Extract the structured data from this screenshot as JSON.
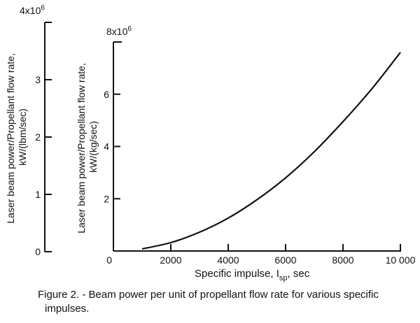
{
  "chart_data": [
    {
      "type": "axis",
      "ylabel_lines": [
        "Laser beam power/Propellant flow rate,",
        "kW/(lbm/sec)"
      ],
      "ylim": [
        0,
        4000000
      ],
      "y_ticks": [
        0,
        1,
        2,
        3
      ],
      "y_ticks_labels": [
        "0",
        "1",
        "2",
        "3"
      ],
      "y_top_label": "4x10",
      "y_top_exponent": "6"
    },
    {
      "type": "line",
      "ylabel_lines": [
        "Laser beam power/Propellant flow rate,",
        "kW/(kg/sec)"
      ],
      "xlabel_main": "Specific impulse,  I",
      "xlabel_sub": "sp",
      "xlabel_unit": ",  sec",
      "xlim": [
        0,
        10000
      ],
      "ylim": [
        0,
        8000000
      ],
      "x_ticks": [
        0,
        2000,
        4000,
        6000,
        8000,
        10000
      ],
      "x_tick_labels": [
        "0",
        "2000",
        "4000",
        "6000",
        "8000",
        "10 000"
      ],
      "y_ticks": [
        0,
        2,
        4,
        6
      ],
      "y_tick_labels": [
        "",
        "2",
        "4",
        "6"
      ],
      "y_top_label": "8x10",
      "y_top_exponent": "6",
      "series": [
        {
          "x": [
            1000,
            2000,
            3000,
            4000,
            5000,
            6000,
            7000,
            8000,
            9000,
            10000
          ],
          "y": [
            80000,
            320000,
            720000,
            1260000,
            1960000,
            2800000,
            3800000,
            4950000,
            6200000,
            7600000
          ]
        }
      ]
    }
  ],
  "caption": {
    "line1": "Figure 2.  - Beam power per unit of propellant flow rate for various specific",
    "line2": "impulses."
  }
}
